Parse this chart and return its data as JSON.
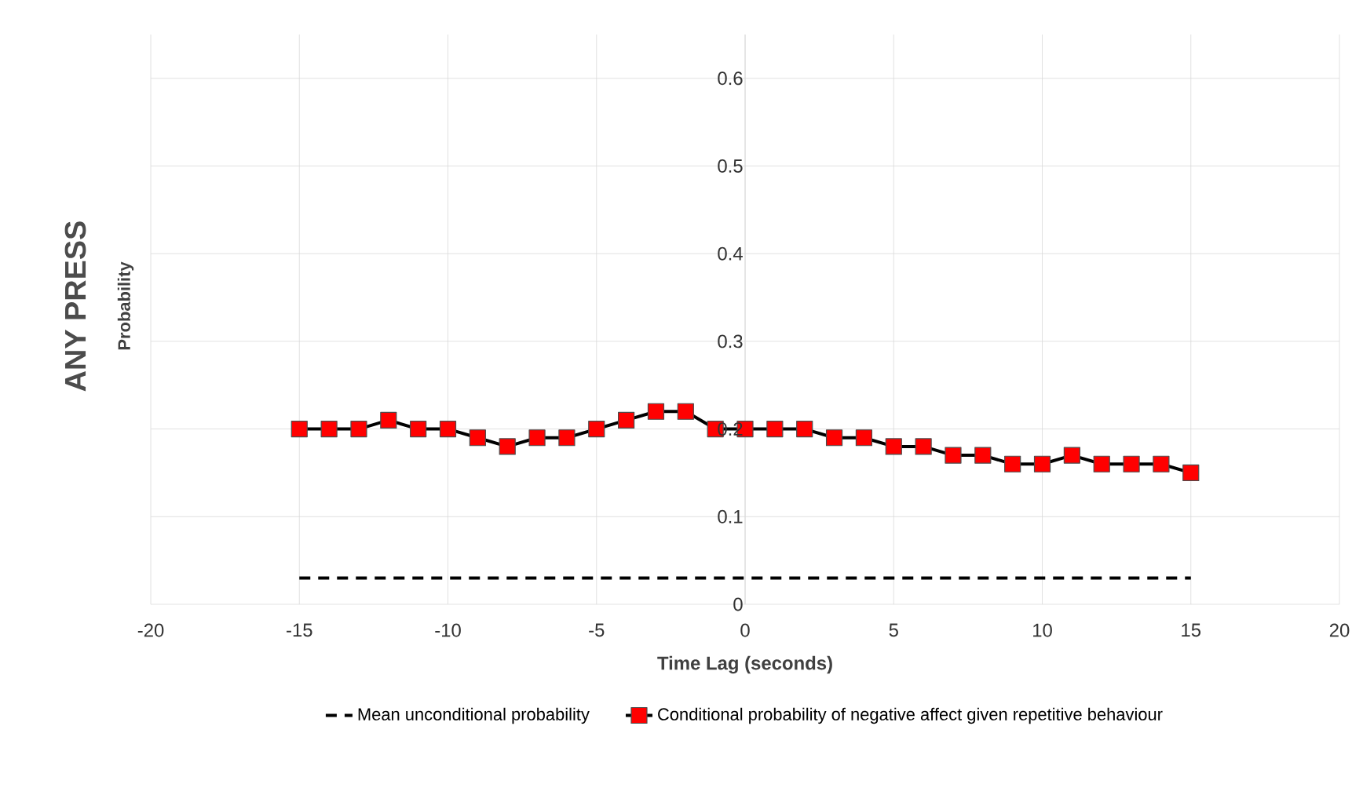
{
  "chart_data": {
    "type": "line",
    "title": "ANY PRESS",
    "xlabel": "Time Lag (seconds)",
    "ylabel": "Probability",
    "xlim": [
      -20,
      20
    ],
    "ylim": [
      0,
      0.65
    ],
    "xticks": [
      -20,
      -15,
      -10,
      -5,
      0,
      5,
      10,
      15,
      20
    ],
    "yticks": [
      0,
      0.1,
      0.2,
      0.3,
      0.4,
      0.5,
      0.6
    ],
    "grid": true,
    "legend": "bottom",
    "series": [
      {
        "name": "Mean unconditional probability",
        "color": "#000000",
        "line_style": "dashed",
        "marker": "none",
        "x": [
          -15,
          15
        ],
        "values": [
          0.03,
          0.03
        ]
      },
      {
        "name": "Conditional probability of negative affect given repetitive behaviour",
        "color": "#ff0000",
        "line_style": "solid",
        "marker": "square",
        "x": [
          -15,
          -14,
          -13,
          -12,
          -11,
          -10,
          -9,
          -8,
          -7,
          -6,
          -5,
          -4,
          -3,
          -2,
          -1,
          0,
          1,
          2,
          3,
          4,
          5,
          6,
          7,
          8,
          9,
          10,
          11,
          12,
          13,
          14,
          15
        ],
        "values": [
          0.2,
          0.2,
          0.2,
          0.21,
          0.2,
          0.2,
          0.19,
          0.18,
          0.19,
          0.19,
          0.2,
          0.21,
          0.22,
          0.22,
          0.2,
          0.2,
          0.2,
          0.2,
          0.19,
          0.19,
          0.18,
          0.18,
          0.17,
          0.17,
          0.16,
          0.16,
          0.17,
          0.16,
          0.16,
          0.16,
          0.15
        ]
      }
    ]
  }
}
